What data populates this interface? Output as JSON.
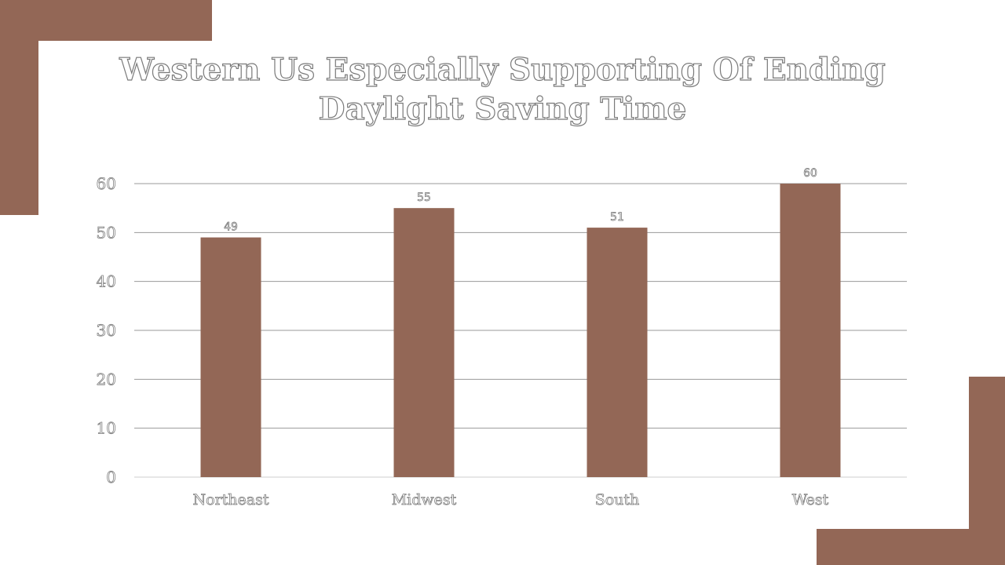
{
  "colors": {
    "accent": "#936756",
    "bar": "#936756",
    "gridline": "#999999",
    "background": "#ffffff"
  },
  "chart_data": {
    "type": "bar",
    "title": "Western Us Especially Supporting Of Ending Daylight Saving Time",
    "title_lines": [
      "Western Us Especially Supporting Of Ending",
      "Daylight Saving Time"
    ],
    "categories": [
      "Northeast",
      "Midwest",
      "South",
      "West"
    ],
    "values": [
      49,
      55,
      51,
      60
    ],
    "data_labels": [
      "49",
      "55",
      "51",
      "60"
    ],
    "ylim": [
      0,
      60
    ],
    "yticks": [
      "0",
      "10",
      "20",
      "30",
      "40",
      "50",
      "60"
    ],
    "xlabel": "",
    "ylabel": "",
    "grid": true,
    "legend": "none"
  }
}
